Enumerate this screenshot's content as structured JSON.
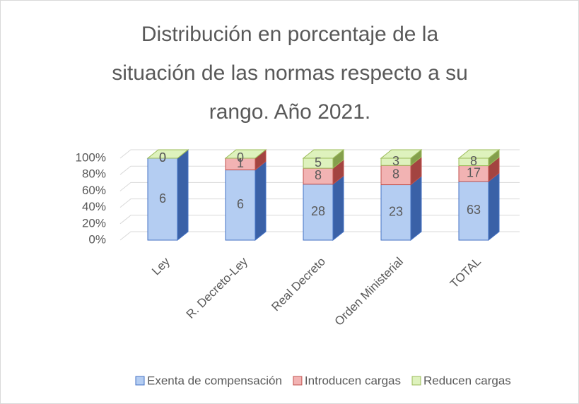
{
  "chart_data": {
    "type": "bar3d",
    "stacking": "percent",
    "title": "Distribución en porcentaje de la situación de las normas respecto a su rango. Año 2021.",
    "categories": [
      "Ley",
      "R. Decreto-Ley",
      "Real Decreto",
      "Orden Ministerial",
      "TOTAL"
    ],
    "series": [
      {
        "name": "Exenta de compensación",
        "color": "#b4cdf2",
        "edge": "#4472c4",
        "values": [
          6,
          6,
          28,
          23,
          63
        ]
      },
      {
        "name": "Introducen cargas",
        "color": "#f2b3b3",
        "edge": "#c0504d",
        "values": [
          0,
          1,
          8,
          8,
          17
        ]
      },
      {
        "name": "Reducen cargas",
        "color": "#def2bd",
        "edge": "#9bbb59",
        "values": [
          0,
          0,
          5,
          3,
          8
        ]
      }
    ],
    "ylim": [
      0,
      100
    ],
    "yticks": [
      {
        "value": 0,
        "label": "0%"
      },
      {
        "value": 20,
        "label": "20%"
      },
      {
        "value": 40,
        "label": "40%"
      },
      {
        "value": 60,
        "label": "60%"
      },
      {
        "value": 80,
        "label": "80%"
      },
      {
        "value": 100,
        "label": "100%"
      }
    ],
    "grid": true,
    "legend": "bottom"
  }
}
